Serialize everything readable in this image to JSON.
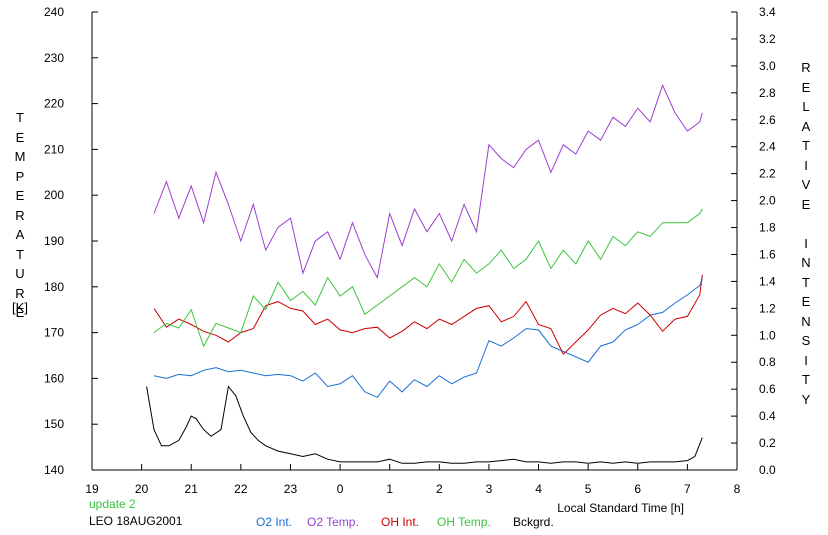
{
  "chart_data": {
    "type": "line",
    "left_axis": {
      "title": "TEMPERATURE",
      "unit": "[K]",
      "ticks": [
        "240",
        "230",
        "220",
        "210",
        "200",
        "190",
        "180",
        "170",
        "160",
        "150",
        "140"
      ],
      "range": [
        140,
        240
      ]
    },
    "right_axis": {
      "title": "RELATIVE INTENSITY",
      "ticks": [
        "3.4",
        "3.2",
        "3.0",
        "2.8",
        "2.6",
        "2.4",
        "2.2",
        "2.0",
        "1.8",
        "1.6",
        "1.4",
        "1.2",
        "1.0",
        "0.8",
        "0.6",
        "0.4",
        "0.2",
        "0.0"
      ],
      "range": [
        0.0,
        3.4
      ]
    },
    "x_axis": {
      "label": "Local Standard Time [h]",
      "ticks": [
        "19",
        "20",
        "21",
        "22",
        "23",
        "0",
        "1",
        "2",
        "3",
        "4",
        "5",
        "6",
        "7",
        "8"
      ],
      "range": [
        19,
        32
      ]
    },
    "grid": false,
    "legend_placement": "bottom",
    "series": [
      {
        "name": "O2 Int.",
        "color": "#1a6fd4",
        "axis": "right",
        "x": [
          20.25,
          20.5,
          20.75,
          21.0,
          21.25,
          21.5,
          21.75,
          22.0,
          22.25,
          22.5,
          22.75,
          23.0,
          23.25,
          23.5,
          23.75,
          24.0,
          24.25,
          24.5,
          24.75,
          25.0,
          25.25,
          25.5,
          25.75,
          26.0,
          26.25,
          26.5,
          26.75,
          27.0,
          27.25,
          27.5,
          27.75,
          28.0,
          28.25,
          28.5,
          28.75,
          29.0,
          29.25,
          29.5,
          29.75,
          30.0,
          30.25,
          30.5,
          30.75,
          31.0,
          31.25,
          31.3
        ],
        "y": [
          0.7,
          0.68,
          0.71,
          0.7,
          0.74,
          0.76,
          0.73,
          0.74,
          0.72,
          0.7,
          0.71,
          0.7,
          0.66,
          0.72,
          0.62,
          0.64,
          0.7,
          0.58,
          0.54,
          0.66,
          0.58,
          0.67,
          0.62,
          0.7,
          0.64,
          0.69,
          0.72,
          0.96,
          0.92,
          0.98,
          1.05,
          1.04,
          0.92,
          0.88,
          0.84,
          0.8,
          0.92,
          0.95,
          1.04,
          1.08,
          1.15,
          1.17,
          1.24,
          1.3,
          1.37,
          1.42
        ]
      },
      {
        "name": "O2 Temp.",
        "color": "#9b3fd0",
        "axis": "left",
        "x": [
          20.25,
          20.5,
          20.75,
          21.0,
          21.25,
          21.5,
          21.75,
          22.0,
          22.25,
          22.5,
          22.75,
          23.0,
          23.25,
          23.5,
          23.75,
          24.0,
          24.25,
          24.5,
          24.75,
          25.0,
          25.25,
          25.5,
          25.75,
          26.0,
          26.25,
          26.5,
          26.75,
          27.0,
          27.25,
          27.5,
          27.75,
          28.0,
          28.25,
          28.5,
          28.75,
          29.0,
          29.25,
          29.5,
          29.75,
          30.0,
          30.25,
          30.5,
          30.75,
          31.0,
          31.25,
          31.3
        ],
        "y": [
          196,
          203,
          195,
          202,
          194,
          205,
          198,
          190,
          198,
          188,
          193,
          195,
          183,
          190,
          192,
          186,
          194,
          187,
          182,
          196,
          189,
          197,
          192,
          196,
          190,
          198,
          192,
          211,
          208,
          206,
          210,
          212,
          205,
          211,
          209,
          214,
          212,
          217,
          215,
          219,
          216,
          224,
          218,
          214,
          216,
          218
        ]
      },
      {
        "name": "OH Int.",
        "color": "#cc0000",
        "axis": "right",
        "x": [
          20.25,
          20.5,
          20.75,
          21.0,
          21.25,
          21.5,
          21.75,
          22.0,
          22.25,
          22.5,
          22.75,
          23.0,
          23.25,
          23.5,
          23.75,
          24.0,
          24.25,
          24.5,
          24.75,
          25.0,
          25.25,
          25.5,
          25.75,
          26.0,
          26.25,
          26.5,
          26.75,
          27.0,
          27.25,
          27.5,
          27.75,
          28.0,
          28.25,
          28.5,
          28.75,
          29.0,
          29.25,
          29.5,
          29.75,
          30.0,
          30.25,
          30.5,
          30.75,
          31.0,
          31.25,
          31.3
        ],
        "y": [
          1.2,
          1.06,
          1.12,
          1.08,
          1.03,
          1.0,
          0.95,
          1.02,
          1.05,
          1.22,
          1.25,
          1.2,
          1.18,
          1.08,
          1.12,
          1.04,
          1.02,
          1.05,
          1.06,
          0.98,
          1.03,
          1.1,
          1.05,
          1.12,
          1.08,
          1.14,
          1.2,
          1.22,
          1.1,
          1.14,
          1.25,
          1.08,
          1.05,
          0.86,
          0.95,
          1.04,
          1.15,
          1.2,
          1.16,
          1.24,
          1.15,
          1.03,
          1.12,
          1.14,
          1.3,
          1.45
        ]
      },
      {
        "name": "OH Temp.",
        "color": "#3cc43c",
        "axis": "left",
        "x": [
          20.25,
          20.5,
          20.75,
          21.0,
          21.25,
          21.5,
          21.75,
          22.0,
          22.25,
          22.5,
          22.75,
          23.0,
          23.25,
          23.5,
          23.75,
          24.0,
          24.25,
          24.5,
          24.75,
          25.0,
          25.25,
          25.5,
          25.75,
          26.0,
          26.25,
          26.5,
          26.75,
          27.0,
          27.25,
          27.5,
          27.75,
          28.0,
          28.25,
          28.5,
          28.75,
          29.0,
          29.25,
          29.5,
          29.75,
          30.0,
          30.25,
          30.5,
          30.75,
          31.0,
          31.25,
          31.3
        ],
        "y": [
          170,
          172,
          171,
          175,
          167,
          172,
          171,
          170,
          178,
          175,
          181,
          177,
          179,
          176,
          182,
          178,
          180,
          174,
          176,
          178,
          180,
          182,
          180,
          185,
          181,
          186,
          183,
          185,
          188,
          184,
          186,
          190,
          184,
          188,
          185,
          190,
          186,
          191,
          189,
          192,
          191,
          194,
          194,
          194,
          196,
          197
        ]
      },
      {
        "name": "Bckgrd.",
        "color": "#000000",
        "axis": "right",
        "x": [
          20.1,
          20.25,
          20.4,
          20.55,
          20.75,
          20.9,
          21.0,
          21.1,
          21.25,
          21.4,
          21.6,
          21.75,
          21.9,
          22.05,
          22.2,
          22.35,
          22.5,
          22.75,
          23.0,
          23.25,
          23.5,
          23.75,
          24.0,
          24.25,
          24.5,
          24.75,
          25.0,
          25.25,
          25.5,
          25.75,
          26.0,
          26.25,
          26.5,
          26.75,
          27.0,
          27.25,
          27.5,
          27.75,
          28.0,
          28.25,
          28.5,
          28.75,
          29.0,
          29.25,
          29.5,
          29.75,
          30.0,
          30.25,
          30.5,
          30.75,
          31.0,
          31.15,
          31.3
        ],
        "y": [
          0.62,
          0.3,
          0.18,
          0.18,
          0.22,
          0.32,
          0.4,
          0.38,
          0.3,
          0.25,
          0.3,
          0.62,
          0.55,
          0.4,
          0.28,
          0.22,
          0.18,
          0.14,
          0.12,
          0.1,
          0.12,
          0.08,
          0.06,
          0.06,
          0.06,
          0.06,
          0.08,
          0.05,
          0.05,
          0.06,
          0.06,
          0.05,
          0.05,
          0.06,
          0.06,
          0.07,
          0.08,
          0.06,
          0.06,
          0.05,
          0.06,
          0.06,
          0.05,
          0.06,
          0.05,
          0.06,
          0.05,
          0.06,
          0.06,
          0.06,
          0.07,
          0.1,
          0.24
        ]
      }
    ]
  },
  "footer": {
    "update_label": "update 2",
    "update_color": "#3cc43c",
    "station_label": "LEO 18AUG2001"
  }
}
